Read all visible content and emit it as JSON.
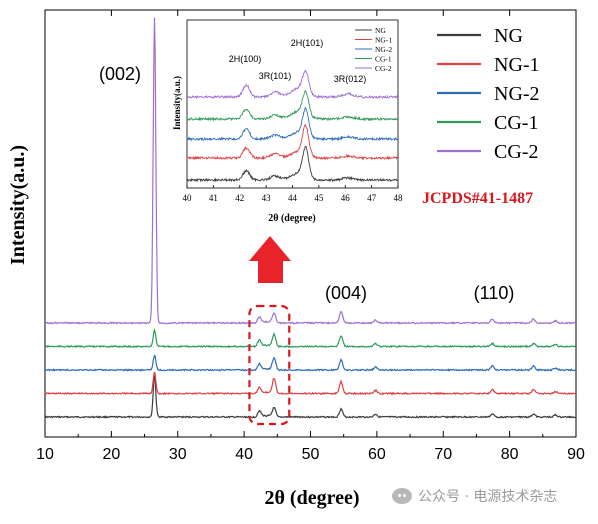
{
  "chart_data": [
    {
      "type": "line",
      "name": "main",
      "xlabel": "2θ (degree)",
      "ylabel": "Intensity(a.u.)",
      "xlim": [
        10,
        90
      ],
      "x_ticks": [
        "10",
        "20",
        "30",
        "40",
        "50",
        "60",
        "70",
        "80",
        "90"
      ],
      "y_ticks": false,
      "legend_position": "top-right",
      "series": [
        {
          "name": "NG",
          "color": "#3c3c3c",
          "offset": 0
        },
        {
          "name": "NG-1",
          "color": "#e04040",
          "offset": 1
        },
        {
          "name": "NG-2",
          "color": "#2f6db5",
          "offset": 2
        },
        {
          "name": "CG-1",
          "color": "#2e9b5a",
          "offset": 3
        },
        {
          "name": "CG-2",
          "color": "#a070d0",
          "offset": 4
        }
      ],
      "peaks": [
        {
          "x": 26.5,
          "label": "(002)"
        },
        {
          "x": 42.3,
          "label": ""
        },
        {
          "x": 44.5,
          "label": ""
        },
        {
          "x": 54.6,
          "label": "(004)"
        },
        {
          "x": 59.8,
          "label": ""
        },
        {
          "x": 77.4,
          "label": "(110)"
        },
        {
          "x": 83.6,
          "label": ""
        },
        {
          "x": 86.9,
          "label": ""
        }
      ],
      "annotations": [
        "JCPDS#41-1487"
      ],
      "highlight_range": [
        40.8,
        46.8
      ]
    },
    {
      "type": "line",
      "name": "inset",
      "xlabel": "2θ (degree)",
      "ylabel": "Intensity(a.u.)",
      "xlim": [
        40,
        48
      ],
      "x_ticks": [
        "40",
        "41",
        "42",
        "43",
        "44",
        "45",
        "46",
        "47",
        "48"
      ],
      "legend_position": "top-right",
      "series": [
        {
          "name": "NG",
          "color": "#3c3c3c"
        },
        {
          "name": "NG-1",
          "color": "#e04040"
        },
        {
          "name": "NG-2",
          "color": "#2f6db5"
        },
        {
          "name": "CG-1",
          "color": "#2e9b5a"
        },
        {
          "name": "CG-2",
          "color": "#a070d0"
        }
      ],
      "peak_labels": [
        {
          "x": 42.2,
          "label": "2H(100)"
        },
        {
          "x": 43.4,
          "label": "3R(101)"
        },
        {
          "x": 44.5,
          "label": "2H(101)"
        },
        {
          "x": 46.1,
          "label": "3R(012)"
        }
      ]
    }
  ],
  "watermark": {
    "text": "公众号 · 电源技术杂志"
  },
  "colors": {
    "arrow": "#e8232a",
    "jcpds": "#d8161c",
    "box": "#d8161c"
  }
}
